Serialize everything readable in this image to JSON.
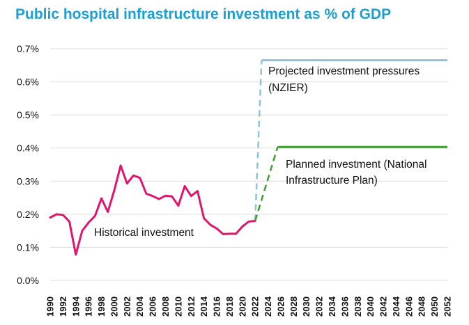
{
  "chart_data": {
    "type": "line",
    "title": "Public hospital infrastructure investment as % of GDP",
    "xlabel": "",
    "ylabel": "",
    "xlim": [
      1990,
      2052
    ],
    "ylim": [
      0,
      0.7
    ],
    "yticks": [
      {
        "value": 0.0,
        "label": "0.0%"
      },
      {
        "value": 0.1,
        "label": "0.1%"
      },
      {
        "value": 0.2,
        "label": "0.2%"
      },
      {
        "value": 0.3,
        "label": "0.3%"
      },
      {
        "value": 0.4,
        "label": "0.4%"
      },
      {
        "value": 0.5,
        "label": "0.5%"
      },
      {
        "value": 0.6,
        "label": "0.6%"
      },
      {
        "value": 0.7,
        "label": "0.7%"
      }
    ],
    "xticks": [
      "1990",
      "1992",
      "1994",
      "1996",
      "1998",
      "2000",
      "2002",
      "2004",
      "2006",
      "2008",
      "2010",
      "2012",
      "2014",
      "2016",
      "2018",
      "2020",
      "2022",
      "2024",
      "2026",
      "2028",
      "2030",
      "2032",
      "2034",
      "2036",
      "2038",
      "2040",
      "2042",
      "2044",
      "2046",
      "2048",
      "2050",
      "2052"
    ],
    "grid": "horizontal",
    "series": [
      {
        "name": "Historical investment",
        "color": "#e0166e",
        "style": "solid",
        "x": [
          1990,
          1991,
          1992,
          1993,
          1994,
          1995,
          1996,
          1997,
          1998,
          1999,
          2000,
          2001,
          2002,
          2003,
          2004,
          2005,
          2006,
          2007,
          2008,
          2009,
          2010,
          2011,
          2012,
          2013,
          2014,
          2015,
          2016,
          2017,
          2018,
          2019,
          2020,
          2021,
          2022
        ],
        "values": [
          0.19,
          0.2,
          0.198,
          0.178,
          0.078,
          0.15,
          0.175,
          0.195,
          0.248,
          0.207,
          0.272,
          0.347,
          0.293,
          0.317,
          0.31,
          0.262,
          0.255,
          0.246,
          0.256,
          0.254,
          0.226,
          0.285,
          0.255,
          0.27,
          0.188,
          0.168,
          0.157,
          0.14,
          0.141,
          0.141,
          0.163,
          0.178,
          0.18
        ]
      },
      {
        "name": "Projected investment pressures (NZIER)",
        "color": "#8ec2d8",
        "style": "dashed-then-solid",
        "x": [
          2022,
          2023,
          2052
        ],
        "values": [
          0.18,
          0.665,
          0.665
        ]
      },
      {
        "name": "Planned investment (National Infrastructure Plan)",
        "color": "#3e9d2f",
        "style": "dashed-then-solid",
        "x": [
          2022,
          2025.5,
          2052
        ],
        "values": [
          0.18,
          0.403,
          0.403
        ]
      }
    ],
    "annotations": {
      "historical": "Historical investment",
      "projected_line1": "Projected investment pressures",
      "projected_line2": "(NZIER)",
      "planned_line1": "Planned investment (National",
      "planned_line2": "Infrastructure Plan)"
    }
  }
}
